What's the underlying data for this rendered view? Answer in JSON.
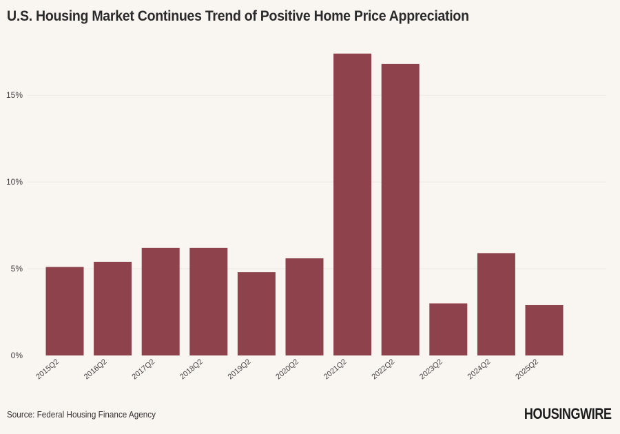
{
  "chart_data": {
    "type": "bar",
    "title": "U.S. Housing Market Continues Trend of Positive Home Price Appreciation",
    "categories": [
      "2015Q2",
      "2016Q2",
      "2017Q2",
      "2018Q2",
      "2019Q2",
      "2020Q2",
      "2021Q2",
      "2022Q2",
      "2023Q2",
      "2024Q2",
      "2025Q2"
    ],
    "values": [
      5.1,
      5.4,
      6.2,
      6.2,
      4.8,
      5.6,
      17.4,
      16.8,
      3.0,
      5.9,
      2.9
    ],
    "ylim": [
      0,
      18.9
    ],
    "yticks": [
      0,
      5,
      10,
      15
    ],
    "ytick_labels": [
      "0%",
      "5%",
      "10%",
      "15%"
    ],
    "xlabel": "",
    "ylabel": "",
    "grid": true,
    "bar_color": "#8e424b"
  },
  "footer": {
    "source": "Source: Federal Housing Finance Agency",
    "logo": "HOUSINGWIRE"
  }
}
